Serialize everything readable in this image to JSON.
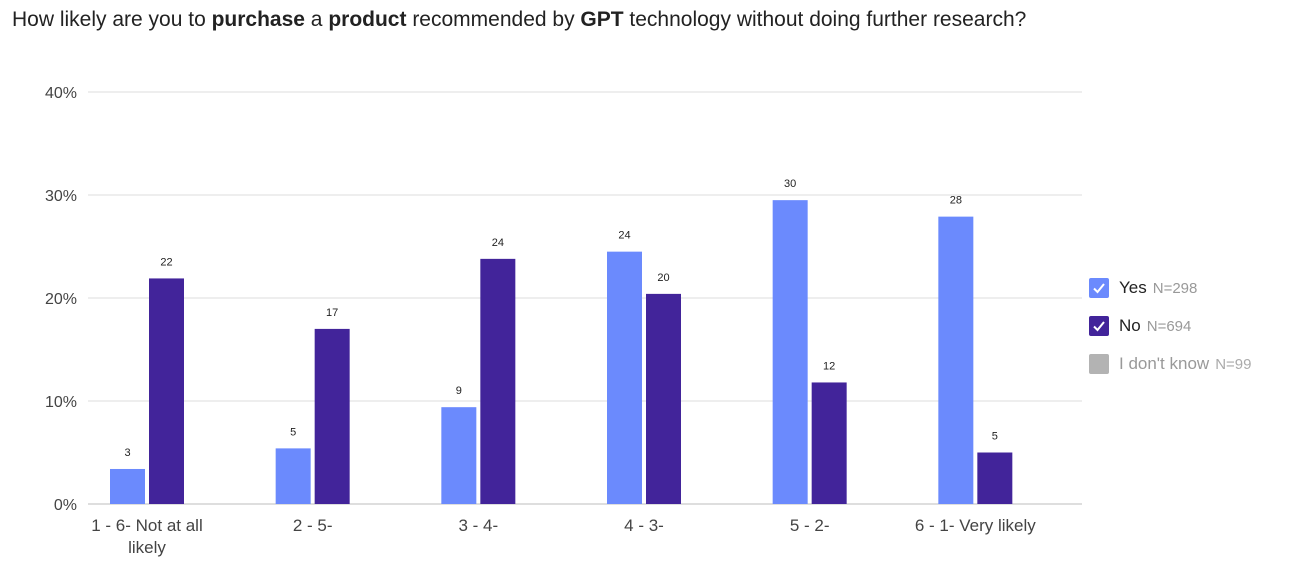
{
  "title": {
    "parts": [
      {
        "text": "How likely are you to ",
        "bold": false
      },
      {
        "text": "purchase",
        "bold": true
      },
      {
        "text": " a ",
        "bold": false
      },
      {
        "text": "product",
        "bold": true
      },
      {
        "text": " recommended by ",
        "bold": false
      },
      {
        "text": "GPT",
        "bold": true
      },
      {
        "text": " technology without doing further research?",
        "bold": false
      }
    ]
  },
  "legend": {
    "items": [
      {
        "label": "Yes",
        "n": "N=298",
        "color": "#6b8afd",
        "checked": true
      },
      {
        "label": "No",
        "n": "N=694",
        "color": "#42249a",
        "checked": true
      },
      {
        "label": "I don't know",
        "n": "N=99",
        "color": "#b3b3b3",
        "checked": false
      }
    ]
  },
  "chart_data": {
    "type": "bar",
    "categories": [
      [
        "1 - 6- Not at all",
        "likely"
      ],
      [
        "2 - 5-"
      ],
      [
        "3 - 4-"
      ],
      [
        "4 - 3-"
      ],
      [
        "5 - 2-"
      ],
      [
        "6 - 1- Very likely"
      ]
    ],
    "series": [
      {
        "name": "Yes",
        "color": "#6b8afd",
        "values": [
          3.4,
          5.4,
          9.4,
          24.5,
          29.5,
          27.9
        ],
        "labels": [
          "3",
          "5",
          "9",
          "24",
          "30",
          "28"
        ]
      },
      {
        "name": "No",
        "color": "#42249a",
        "values": [
          21.9,
          17.0,
          23.8,
          20.4,
          11.8,
          5.0
        ],
        "labels": [
          "22",
          "17",
          "24",
          "20",
          "12",
          "5"
        ]
      }
    ],
    "yticks": [
      "0%",
      "10%",
      "20%",
      "30%",
      "40%"
    ],
    "ylim": [
      0,
      40
    ],
    "grid": true,
    "legend_position": "right"
  }
}
